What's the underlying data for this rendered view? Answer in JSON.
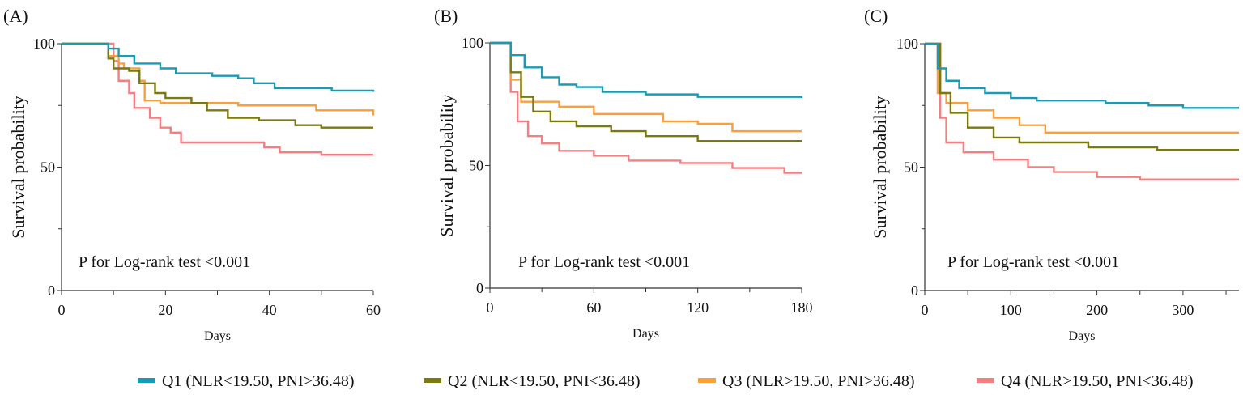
{
  "chart_data": [
    {
      "type": "line",
      "panel_label": "(A)",
      "xlabel": "Days",
      "ylabel": "Survival probability",
      "annotation": "P for Log-rank test <0.001",
      "xlim": [
        0,
        60
      ],
      "ylim": [
        0,
        100
      ],
      "xticks": [
        0,
        20,
        40,
        60
      ],
      "xminor": [
        10,
        30,
        50
      ],
      "yticks": [
        0,
        50,
        100
      ],
      "yminor": [
        25,
        75
      ],
      "series": [
        {
          "name": "Q1",
          "points": [
            [
              0,
              100
            ],
            [
              8,
              100
            ],
            [
              9,
              98
            ],
            [
              11,
              95
            ],
            [
              14,
              92
            ],
            [
              19,
              90
            ],
            [
              22,
              88
            ],
            [
              29,
              87
            ],
            [
              34,
              86
            ],
            [
              37,
              84
            ],
            [
              41,
              82
            ],
            [
              52,
              81
            ],
            [
              60,
              80.5
            ]
          ]
        },
        {
          "name": "Q2",
          "points": [
            [
              0,
              100
            ],
            [
              8,
              100
            ],
            [
              9,
              94
            ],
            [
              10,
              90
            ],
            [
              13,
              89
            ],
            [
              15,
              84
            ],
            [
              18,
              80
            ],
            [
              20,
              78
            ],
            [
              25,
              76
            ],
            [
              28,
              73
            ],
            [
              32,
              70
            ],
            [
              38,
              69
            ],
            [
              45,
              67
            ],
            [
              50,
              66
            ],
            [
              60,
              66
            ]
          ]
        },
        {
          "name": "Q3",
          "points": [
            [
              0,
              100
            ],
            [
              8,
              100
            ],
            [
              9,
              95
            ],
            [
              11,
              92
            ],
            [
              12,
              90
            ],
            [
              15,
              85
            ],
            [
              16,
              77
            ],
            [
              19,
              76
            ],
            [
              34,
              75
            ],
            [
              49,
              73
            ],
            [
              60,
              71
            ]
          ]
        },
        {
          "name": "Q4",
          "points": [
            [
              0,
              100
            ],
            [
              8,
              100
            ],
            [
              10,
              93
            ],
            [
              11,
              85
            ],
            [
              13,
              80
            ],
            [
              14,
              74
            ],
            [
              17,
              70
            ],
            [
              19,
              66
            ],
            [
              21,
              64
            ],
            [
              23,
              60
            ],
            [
              36,
              60
            ],
            [
              39,
              58
            ],
            [
              42,
              56
            ],
            [
              50,
              55
            ],
            [
              60,
              55
            ]
          ]
        }
      ]
    },
    {
      "type": "line",
      "panel_label": "(B)",
      "xlabel": "Days",
      "ylabel": "Survival probability",
      "annotation": "P for Log-rank test <0.001",
      "xlim": [
        0,
        180
      ],
      "ylim": [
        0,
        100
      ],
      "xticks": [
        0,
        60,
        120,
        180
      ],
      "xminor": [
        30,
        90,
        150
      ],
      "yticks": [
        0,
        50,
        100
      ],
      "yminor": [
        25,
        75
      ],
      "series": [
        {
          "name": "Q1",
          "points": [
            [
              0,
              100
            ],
            [
              8,
              100
            ],
            [
              12,
              95
            ],
            [
              20,
              90
            ],
            [
              30,
              86
            ],
            [
              40,
              83
            ],
            [
              50,
              82
            ],
            [
              65,
              80
            ],
            [
              90,
              79
            ],
            [
              120,
              78
            ],
            [
              180,
              77.5
            ]
          ]
        },
        {
          "name": "Q2",
          "points": [
            [
              0,
              100
            ],
            [
              8,
              100
            ],
            [
              12,
              88
            ],
            [
              18,
              78
            ],
            [
              25,
              72
            ],
            [
              35,
              68
            ],
            [
              50,
              66
            ],
            [
              70,
              64
            ],
            [
              90,
              62
            ],
            [
              120,
              60
            ],
            [
              180,
              60
            ]
          ]
        },
        {
          "name": "Q3",
          "points": [
            [
              0,
              100
            ],
            [
              8,
              100
            ],
            [
              12,
              85
            ],
            [
              18,
              76
            ],
            [
              40,
              74
            ],
            [
              60,
              71
            ],
            [
              100,
              68
            ],
            [
              120,
              67
            ],
            [
              140,
              64
            ],
            [
              180,
              64
            ]
          ]
        },
        {
          "name": "Q4",
          "points": [
            [
              0,
              100
            ],
            [
              8,
              100
            ],
            [
              12,
              80
            ],
            [
              16,
              68
            ],
            [
              22,
              62
            ],
            [
              30,
              59
            ],
            [
              40,
              56
            ],
            [
              60,
              54
            ],
            [
              80,
              52
            ],
            [
              110,
              51
            ],
            [
              140,
              49
            ],
            [
              170,
              47
            ],
            [
              180,
              47
            ]
          ]
        }
      ]
    },
    {
      "type": "line",
      "panel_label": "(C)",
      "xlabel": "Days",
      "ylabel": "Survival probability",
      "annotation": "P for Log-rank test <0.001",
      "xlim": [
        0,
        365
      ],
      "ylim": [
        0,
        100
      ],
      "xticks": [
        0,
        100,
        200,
        300
      ],
      "xminor": [
        50,
        150,
        250,
        350
      ],
      "yticks": [
        0,
        50,
        100
      ],
      "yminor": [
        25,
        75
      ],
      "series": [
        {
          "name": "Q1",
          "points": [
            [
              0,
              100
            ],
            [
              8,
              100
            ],
            [
              15,
              90
            ],
            [
              25,
              85
            ],
            [
              40,
              82
            ],
            [
              70,
              80
            ],
            [
              100,
              78
            ],
            [
              130,
              77
            ],
            [
              210,
              76
            ],
            [
              260,
              75
            ],
            [
              300,
              74
            ],
            [
              365,
              74
            ]
          ]
        },
        {
          "name": "Q2",
          "points": [
            [
              0,
              100
            ],
            [
              8,
              100
            ],
            [
              18,
              80
            ],
            [
              30,
              72
            ],
            [
              50,
              66
            ],
            [
              80,
              62
            ],
            [
              110,
              60
            ],
            [
              190,
              58
            ],
            [
              270,
              57
            ],
            [
              365,
              57
            ]
          ]
        },
        {
          "name": "Q3",
          "points": [
            [
              0,
              100
            ],
            [
              8,
              100
            ],
            [
              15,
              80
            ],
            [
              25,
              76
            ],
            [
              50,
              73
            ],
            [
              80,
              70
            ],
            [
              110,
              67
            ],
            [
              140,
              64
            ],
            [
              365,
              64
            ]
          ]
        },
        {
          "name": "Q4",
          "points": [
            [
              0,
              100
            ],
            [
              8,
              100
            ],
            [
              18,
              70
            ],
            [
              25,
              60
            ],
            [
              45,
              56
            ],
            [
              80,
              53
            ],
            [
              120,
              50
            ],
            [
              150,
              48
            ],
            [
              200,
              46
            ],
            [
              250,
              45
            ],
            [
              365,
              45
            ]
          ]
        }
      ]
    }
  ],
  "legend": {
    "position": "bottom",
    "entries": [
      {
        "key": "Q1",
        "label": "Q1 (NLR<19.50, PNI>36.48)",
        "color": "#1a9bb5"
      },
      {
        "key": "Q2",
        "label": "Q2 (NLR<19.50, PNI<36.48)",
        "color": "#7a7a10"
      },
      {
        "key": "Q3",
        "label": "Q3 (NLR>19.50, PNI>36.48)",
        "color": "#f9a03c"
      },
      {
        "key": "Q4",
        "label": "Q4 (NLR>19.50, PNI<36.48)",
        "color": "#f28080"
      }
    ]
  }
}
